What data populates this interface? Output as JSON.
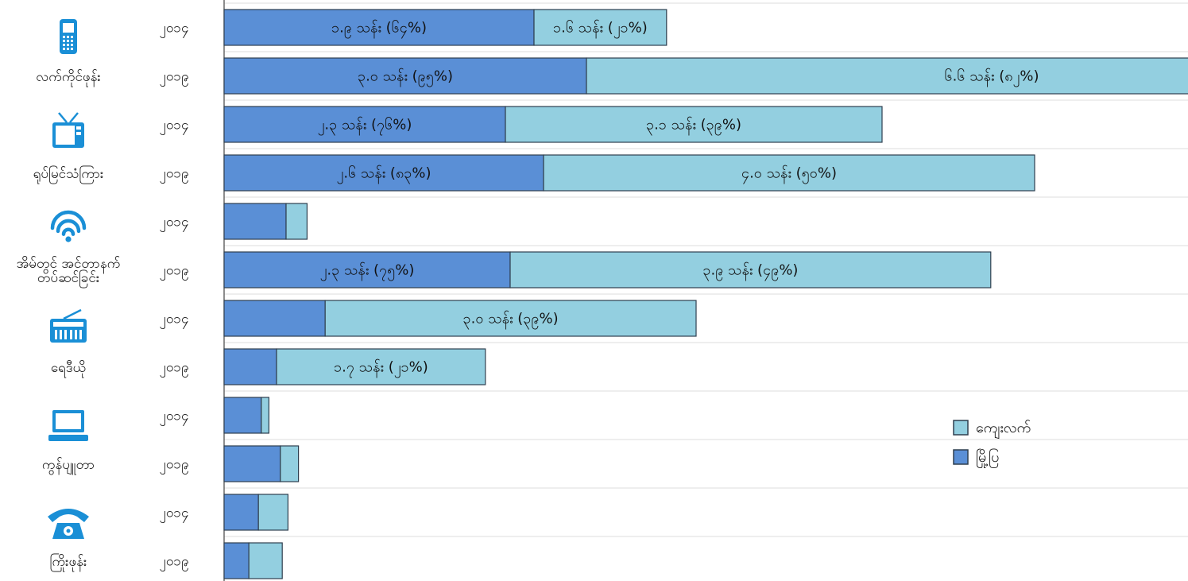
{
  "colors": {
    "urban": "#5a8fd6",
    "rural": "#93cfe0",
    "stroke": "#2f3f4f",
    "icon": "#1a8fd6",
    "grid": "#dddddd"
  },
  "legend": {
    "rural_label": "ကျေးလက်",
    "urban_label": "မြို့ပြ"
  },
  "chart_data": {
    "type": "bar",
    "orientation": "horizontal",
    "stacked": true,
    "series_order": [
      "urban",
      "rural"
    ],
    "xlim": [
      0,
      100
    ],
    "groups": [
      {
        "icon": "mobile-phone-icon",
        "label_lines": [
          "လက်ကိုင်ဖုန်း"
        ],
        "rows": [
          {
            "year": "၂၀၁၄",
            "urban": 32.5,
            "rural": 13.9,
            "urban_label": "၁.၉ သန်း (၆၄%)",
            "rural_label": "၁.၆ သန်း (၂၁%)"
          },
          {
            "year": "၂၀၁၉",
            "urban": 38.0,
            "rural": 85.0,
            "urban_label": "၃.၀ သန်း (၉၅%)",
            "rural_label": "၆.၆ သန်း (၈၂%)"
          }
        ]
      },
      {
        "icon": "television-icon",
        "label_lines": [
          "ရုပ်မြင်သံကြား"
        ],
        "rows": [
          {
            "year": "၂၀၁၄",
            "urban": 29.5,
            "rural": 39.5,
            "urban_label": "၂.၃ သန်း (၇၆%)",
            "rural_label": "၃.၁ သန်း (၃၉%)"
          },
          {
            "year": "၂၀၁၉",
            "urban": 33.5,
            "rural": 51.5,
            "urban_label": "၂.၆ သန်း (၈၃%)",
            "rural_label": "၄.၀ သန်း (၅၀%)"
          }
        ]
      },
      {
        "icon": "wifi-icon",
        "label_lines": [
          "အိမ်တွင် အင်တာနက်",
          "တပ်ဆင်ခြင်း"
        ],
        "rows": [
          {
            "year": "၂၀၁၄",
            "urban": 6.5,
            "rural": 2.2,
            "urban_label": "",
            "rural_label": ""
          },
          {
            "year": "၂၀၁၉",
            "urban": 30.0,
            "rural": 50.4,
            "urban_label": "၂.၃ သန်း (၇၅%)",
            "rural_label": "၃.၉ သန်း (၄၉%)"
          }
        ]
      },
      {
        "icon": "radio-icon",
        "label_lines": [
          "ရေဒီယို"
        ],
        "rows": [
          {
            "year": "၂၀၁၄",
            "urban": 10.6,
            "rural": 38.9,
            "urban_label": "",
            "rural_label": "၃.၀ သန်း (၃၉%)"
          },
          {
            "year": "၂၀၁၉",
            "urban": 5.5,
            "rural": 21.9,
            "urban_label": "",
            "rural_label": "၁.၇ သန်း (၂၁%)"
          }
        ]
      },
      {
        "icon": "computer-icon",
        "label_lines": [
          "ကွန်ပျူတာ"
        ],
        "rows": [
          {
            "year": "၂၀၁၄",
            "urban": 3.9,
            "rural": 0.8,
            "urban_label": "",
            "rural_label": ""
          },
          {
            "year": "၂၀၁၉",
            "urban": 5.9,
            "rural": 1.9,
            "urban_label": "",
            "rural_label": ""
          }
        ]
      },
      {
        "icon": "telephone-icon",
        "label_lines": [
          "ကြိုးဖုန်း"
        ],
        "rows": [
          {
            "year": "၂၀၁၄",
            "urban": 3.6,
            "rural": 3.1,
            "urban_label": "",
            "rural_label": ""
          },
          {
            "year": "၂၀၁၉",
            "urban": 2.6,
            "rural": 3.5,
            "urban_label": "",
            "rural_label": ""
          }
        ]
      }
    ]
  }
}
